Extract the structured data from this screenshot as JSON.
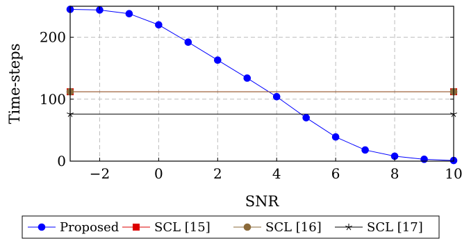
{
  "chart_data": {
    "type": "line",
    "title": "",
    "xlabel": "SNR",
    "ylabel": "Time-steps",
    "xlim": [
      -3,
      10
    ],
    "ylim": [
      0,
      250
    ],
    "xticks": [
      -2,
      0,
      2,
      4,
      6,
      8,
      10
    ],
    "yticks": [
      0,
      100,
      200
    ],
    "xtick_labels": [
      "−2",
      "0",
      "2",
      "4",
      "6",
      "8",
      "10"
    ],
    "ytick_labels": [
      "0",
      "100",
      "200"
    ],
    "grid": true,
    "legend_position": "bottom",
    "series": [
      {
        "name": "Proposed",
        "color": "#0000ff",
        "marker": "circle",
        "x": [
          -3,
          -2,
          -1,
          0,
          1,
          2,
          3,
          4,
          5,
          6,
          7,
          8,
          9,
          10
        ],
        "y": [
          245,
          244,
          238,
          220,
          192,
          163,
          134,
          104,
          70,
          39,
          18,
          8,
          3,
          1
        ]
      },
      {
        "name": "SCL [15]",
        "color": "#dd0000",
        "marker": "square",
        "x": [
          -3,
          10
        ],
        "y": [
          112,
          112
        ]
      },
      {
        "name": "SCL [16]",
        "color": "#8b6a3a",
        "marker": "circle",
        "x": [
          -3,
          10
        ],
        "y": [
          112,
          112
        ]
      },
      {
        "name": "SCL [17]",
        "color": "#000000",
        "marker": "star",
        "x": [
          -3,
          10
        ],
        "y": [
          76,
          76
        ]
      }
    ]
  }
}
